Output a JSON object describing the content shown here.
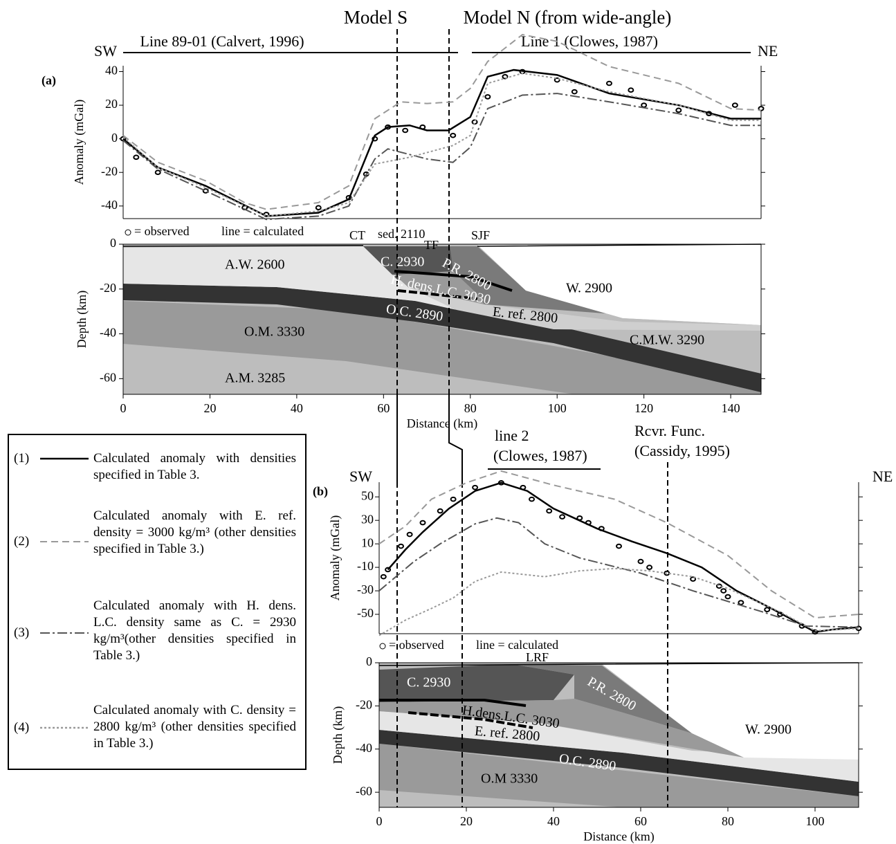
{
  "top_labels": {
    "model_s": "Model S",
    "model_n": "Model N (from wide-angle)",
    "line_89": "Line 89-01 (Calvert, 1996)",
    "line_1": "Line 1 (Clowes, 1987)",
    "sw_a": "SW",
    "ne_a": "NE",
    "line_2": "line 2",
    "line_2_ref": "(Clowes, 1987)",
    "rcvr": "Rcvr. Func.",
    "rcvr_ref": "(Cassidy, 1995)",
    "sw_b": "SW",
    "ne_b": "NE"
  },
  "legend": [
    {
      "number": "(1)",
      "text": "Calculated anomaly with densities specified in Table 3."
    },
    {
      "number": "(2)",
      "text": "Calculated anomaly with E. ref. density = 3000 kg/m³ (other densities specified in Table 3.)"
    },
    {
      "number": "(3)",
      "text": "Calculated anomaly with H. dens. L.C. density same as C. = 2930 kg/m³(other densities specified in Table 3.)"
    },
    {
      "number": "(4)",
      "text": "Calculated anomaly with C. density = 2800 kg/m³ (other densities specified in Table 3.)"
    }
  ],
  "chart_data": [
    {
      "type": "line",
      "panel": "(a)",
      "ylabel": "Anomaly (mGal)",
      "observed_label": "= observed",
      "calculated_label": "line = calculated",
      "xlim": [
        0,
        147
      ],
      "ylim": [
        -47.5,
        43.5
      ],
      "yticks": [
        -40,
        -20,
        0,
        20,
        40
      ],
      "series": [
        {
          "marker": "circle",
          "color": "#000000",
          "x": [
            0,
            3,
            8,
            19,
            28,
            33,
            45,
            52,
            56,
            58,
            61,
            65,
            69,
            76,
            81,
            84,
            88,
            92,
            100,
            104,
            112,
            117,
            120,
            128,
            135,
            141,
            147
          ],
          "values": [
            0,
            -11,
            -20,
            -31,
            -41,
            -45,
            -41,
            -35,
            -21,
            0,
            7,
            5,
            7,
            2,
            10,
            25,
            37,
            40,
            35,
            28,
            33,
            29,
            20,
            17,
            15,
            20,
            18
          ]
        },
        {
          "style": "solid",
          "color": "#000000",
          "x": [
            0,
            8,
            19,
            33,
            45,
            52,
            58,
            61,
            66,
            70,
            75,
            80,
            84,
            90,
            100,
            112,
            128,
            140,
            147
          ],
          "values": [
            0,
            -17,
            -28,
            -46,
            -44,
            -36,
            2,
            7,
            8,
            5,
            5,
            13,
            37,
            41,
            38,
            27,
            20,
            12,
            12
          ]
        },
        {
          "style": "dashed",
          "color": "#999999",
          "x": [
            0,
            8,
            19,
            28,
            33,
            45,
            52,
            58,
            64,
            70,
            76,
            80,
            84,
            92,
            100,
            112,
            128,
            140,
            147
          ],
          "values": [
            2,
            -14,
            -25,
            -38,
            -42,
            -38,
            -28,
            12,
            22,
            21,
            22,
            30,
            46,
            62,
            58,
            43,
            33,
            18,
            17
          ]
        },
        {
          "style": "dashdot",
          "color": "#555555",
          "x": [
            0,
            8,
            19,
            33,
            45,
            52,
            58,
            61,
            70,
            76,
            80,
            84,
            92,
            100,
            112,
            128,
            140,
            147
          ],
          "values": [
            -1,
            -18,
            -31,
            -48,
            -46,
            -40,
            -12,
            -6,
            -12,
            -14,
            -5,
            18,
            26,
            27,
            22,
            15,
            8,
            8
          ]
        },
        {
          "style": "dotted",
          "color": "#999999",
          "x": [
            0,
            8,
            19,
            33,
            45,
            52,
            58,
            66,
            76,
            80,
            84,
            92,
            100,
            112,
            128,
            140,
            147
          ],
          "values": [
            1,
            -17,
            -29,
            -46,
            -43,
            -38,
            -15,
            -11,
            -4,
            2,
            33,
            39,
            36,
            28,
            20,
            11,
            11
          ]
        }
      ]
    },
    {
      "type": "section",
      "xlabel": "Distance (km)",
      "ylabel": "Depth (km)",
      "xlim": [
        0,
        147
      ],
      "ylim": [
        -67,
        0
      ],
      "xticks": [
        0,
        20,
        40,
        60,
        80,
        100,
        120,
        140
      ],
      "yticks": [
        0,
        -20,
        -40,
        -60
      ],
      "labels": {
        "aw": "A.W. 2600",
        "c": "C. 2930",
        "pr": "P.R. 2800",
        "hd": "H. dens.L.C. 3030",
        "w": "W. 2900",
        "oc": "O.C. 2890",
        "er": "E. ref. 2800",
        "om": "O.M. 3330",
        "cmw": "C.M.W. 3290",
        "am": "A.M. 3285",
        "ct": "CT",
        "sed": "sed. 2110",
        "tf": "TF",
        "sjf": "SJF"
      }
    },
    {
      "type": "line",
      "panel": "(b)",
      "ylabel": "Anomaly (mGal)",
      "observed_label": "= observed",
      "calculated_label": "line = calculated",
      "xlim": [
        0,
        110
      ],
      "ylim": [
        -66.5,
        62.5
      ],
      "yticks": [
        -50,
        -30,
        -10,
        10,
        30,
        50
      ],
      "series": [
        {
          "marker": "circle",
          "color": "#000000",
          "x": [
            1,
            2,
            5,
            7,
            10,
            14,
            17,
            22,
            28,
            33,
            35,
            39,
            42,
            46,
            48,
            51,
            55,
            60,
            62,
            66,
            72,
            78,
            79,
            80,
            83,
            89,
            92,
            97,
            100,
            110
          ],
          "values": [
            -18,
            -12,
            8,
            18,
            28,
            38,
            48,
            58,
            62,
            58,
            48,
            38,
            33,
            32,
            28,
            23,
            8,
            -5,
            -10,
            -15,
            -20,
            -26,
            -30,
            -35,
            -40,
            -46,
            -50,
            -60,
            -65,
            -62
          ]
        },
        {
          "style": "solid",
          "color": "#000000",
          "x": [
            2,
            6,
            10,
            16,
            22,
            28,
            34,
            40,
            50,
            58,
            66,
            74,
            82,
            90,
            100,
            104,
            110
          ],
          "values": [
            -12,
            5,
            20,
            40,
            55,
            62,
            55,
            40,
            23,
            12,
            2,
            -10,
            -30,
            -45,
            -65,
            -63,
            -61
          ]
        },
        {
          "style": "dashed",
          "color": "#999999",
          "x": [
            0,
            6,
            12,
            20,
            28,
            40,
            54,
            66,
            80,
            90,
            100,
            110
          ],
          "values": [
            10,
            25,
            48,
            62,
            72,
            60,
            48,
            28,
            0,
            -30,
            -53,
            -50
          ]
        },
        {
          "style": "dashdot",
          "color": "#555555",
          "x": [
            0,
            8,
            14,
            22,
            27,
            32,
            38,
            46,
            60,
            72,
            88,
            98,
            110
          ],
          "values": [
            -30,
            -5,
            10,
            27,
            32,
            28,
            10,
            -2,
            -15,
            -30,
            -48,
            -60,
            -61
          ]
        },
        {
          "style": "dotted",
          "color": "#999999",
          "x": [
            0,
            6,
            12,
            17,
            22,
            28,
            38,
            46,
            54,
            62,
            72,
            80,
            92,
            100,
            110
          ],
          "values": [
            -68,
            -55,
            -45,
            -36,
            -22,
            -14,
            -18,
            -13,
            -11,
            -13,
            -18,
            -28,
            -48,
            -64,
            -62
          ]
        }
      ]
    },
    {
      "type": "section",
      "xlabel": "Distance (km)",
      "ylabel": "Depth (km)",
      "xlim": [
        0,
        110
      ],
      "ylim": [
        -67,
        0
      ],
      "xticks": [
        0,
        20,
        40,
        60,
        80,
        100
      ],
      "yticks": [
        0,
        -20,
        -40,
        -60
      ],
      "labels": {
        "c": "C. 2930",
        "pr": "P.R. 2800",
        "hd": "H.dens.L.C. 3030",
        "er": "E. ref. 2800",
        "w": "W. 2900",
        "oc": "O.C. 2890",
        "om": "O.M 3330",
        "lrf": "LRF"
      }
    }
  ]
}
